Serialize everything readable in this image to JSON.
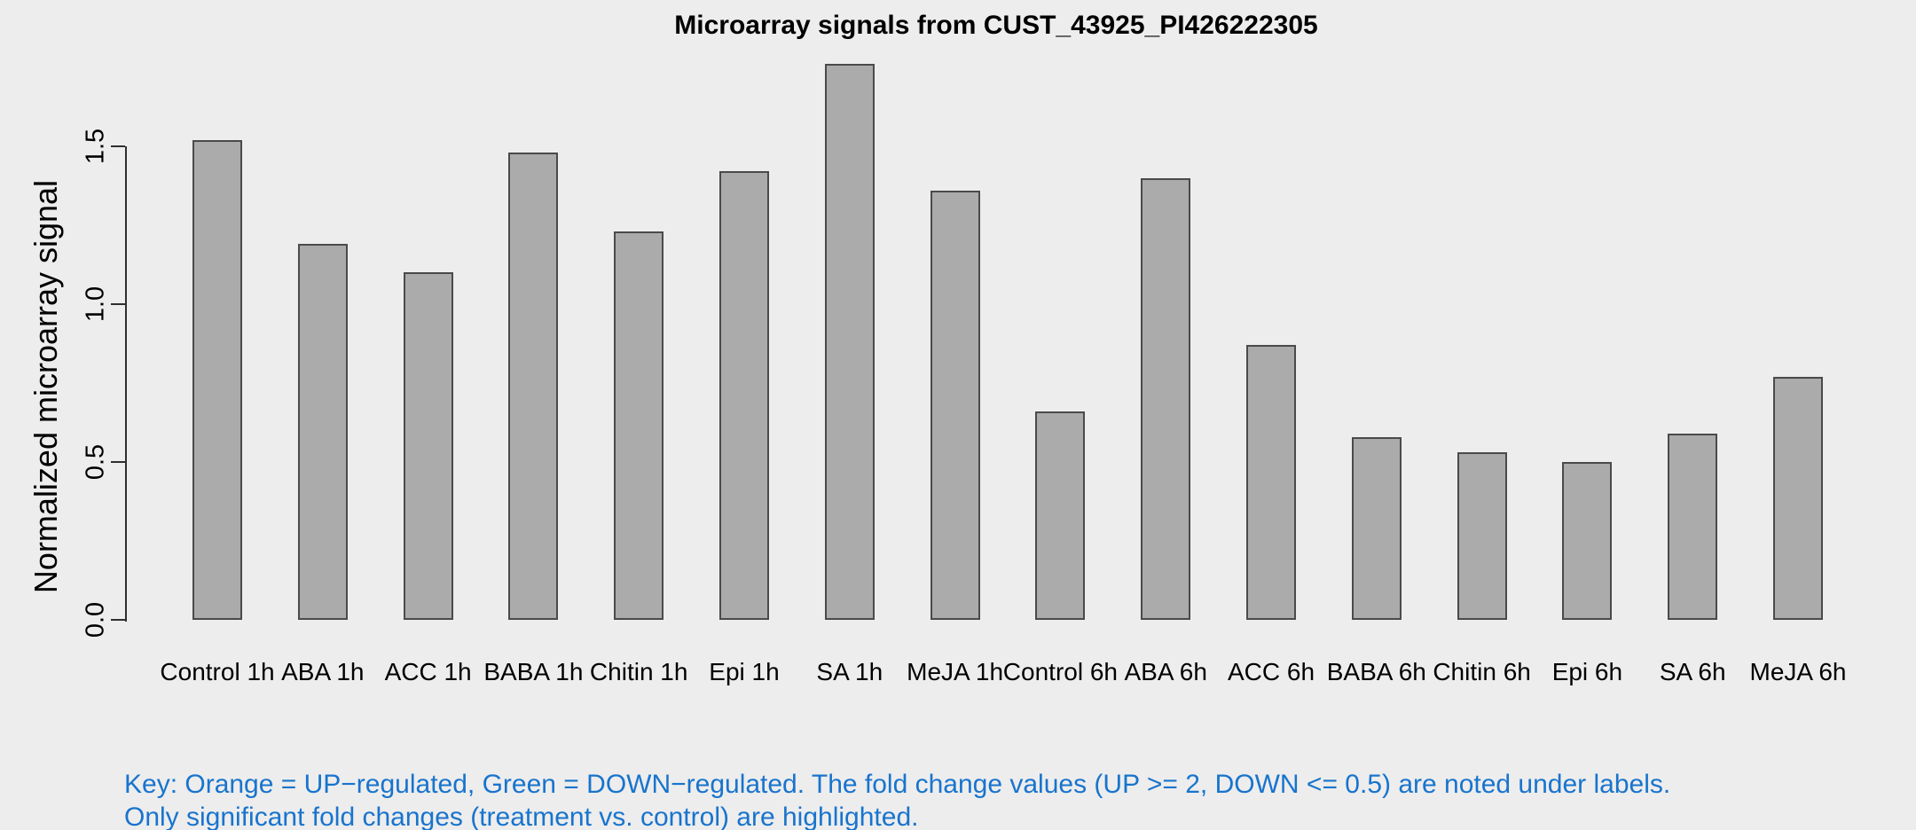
{
  "chart_data": {
    "type": "bar",
    "title": "Microarray signals from CUST_43925_PI426222305",
    "xlabel": "",
    "ylabel": "Normalized microarray signal",
    "categories": [
      "Control 1h",
      "ABA 1h",
      "ACC 1h",
      "BABA 1h",
      "Chitin 1h",
      "Epi 1h",
      "SA 1h",
      "MeJA 1h",
      "Control 6h",
      "ABA 6h",
      "ACC 6h",
      "BABA 6h",
      "Chitin 6h",
      "Epi 6h",
      "SA 6h",
      "MeJA 6h"
    ],
    "values": [
      1.52,
      1.19,
      1.1,
      1.48,
      1.23,
      1.42,
      1.76,
      1.36,
      0.66,
      1.4,
      0.87,
      0.58,
      0.53,
      0.5,
      0.59,
      0.77
    ],
    "yticks": [
      0.0,
      0.5,
      1.0,
      1.5
    ],
    "ytick_labels": [
      "0.0",
      "0.5",
      "1.0",
      "1.5"
    ],
    "ylim": [
      0,
      1.8
    ],
    "grid": false,
    "legend": "none",
    "colors": {
      "background": "#EDEDED",
      "bar_fill": "#ABABAB",
      "bar_border": "#4A4A4A",
      "axis": "#2F2F2F",
      "text": "#000000",
      "note_text": "#1874CD"
    },
    "notes": [
      "Key: Orange = UP−regulated, Green = DOWN−regulated. The fold change values (UP >= 2, DOWN <= 0.5) are noted under labels.",
      "Only significant fold changes (treatment vs. control) are highlighted."
    ]
  }
}
